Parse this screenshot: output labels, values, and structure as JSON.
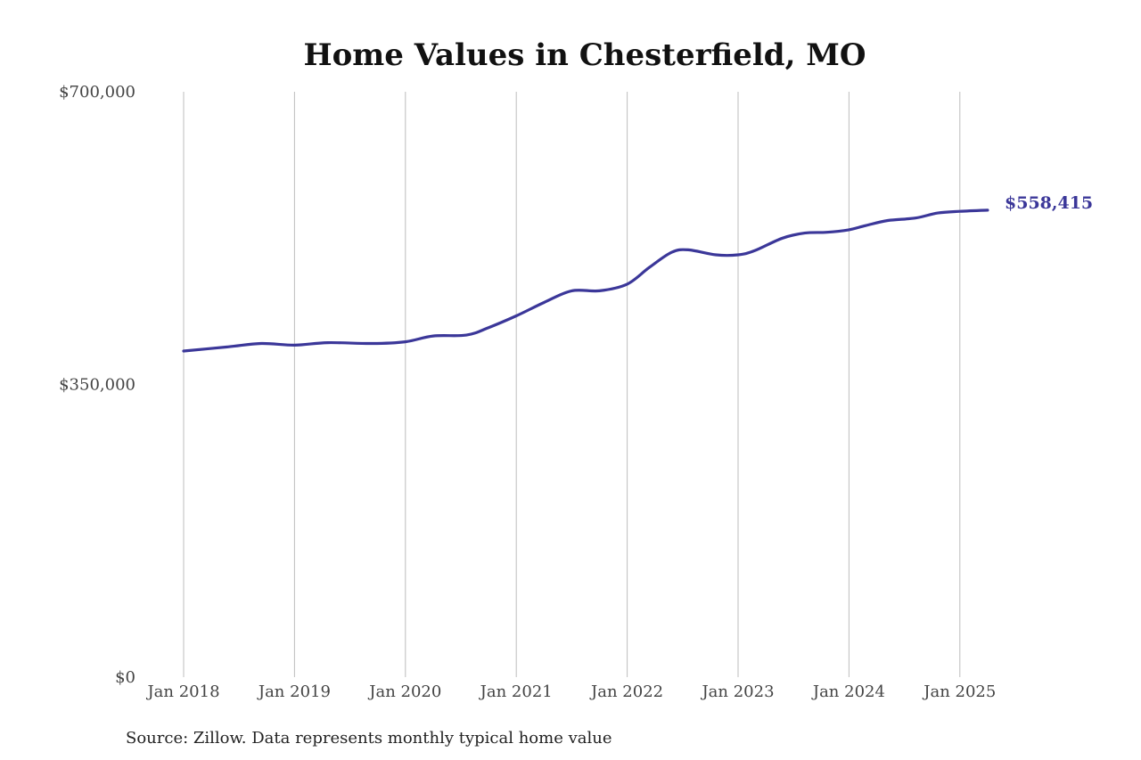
{
  "chart_data": {
    "type": "line",
    "title": "Home Values in Chesterfield, MO",
    "xlabel": "",
    "ylabel": "",
    "ylim": [
      0,
      700000
    ],
    "yticks": [
      {
        "value": 0,
        "label": "$0"
      },
      {
        "value": 350000,
        "label": "$350,000"
      },
      {
        "value": 700000,
        "label": "$700,000"
      }
    ],
    "xticks": [
      {
        "value": 2018.0,
        "label": "Jan 2018"
      },
      {
        "value": 2019.0,
        "label": "Jan 2019"
      },
      {
        "value": 2020.0,
        "label": "Jan 2020"
      },
      {
        "value": 2021.0,
        "label": "Jan 2021"
      },
      {
        "value": 2022.0,
        "label": "Jan 2022"
      },
      {
        "value": 2023.0,
        "label": "Jan 2023"
      },
      {
        "value": 2024.0,
        "label": "Jan 2024"
      },
      {
        "value": 2025.0,
        "label": "Jan 2025"
      }
    ],
    "grid": "vertical",
    "series": [
      {
        "color": "#3b3799",
        "x": [
          2018.0,
          2018.4,
          2018.7,
          2019.0,
          2019.3,
          2019.7,
          2020.0,
          2020.25,
          2020.55,
          2020.75,
          2021.0,
          2021.25,
          2021.5,
          2021.75,
          2022.0,
          2022.2,
          2022.4,
          2022.55,
          2022.8,
          2023.0,
          2023.15,
          2023.4,
          2023.6,
          2023.8,
          2024.0,
          2024.15,
          2024.35,
          2024.6,
          2024.8,
          2025.0,
          2025.25
        ],
        "y": [
          390000,
          395000,
          399000,
          397000,
          400000,
          399000,
          401000,
          408000,
          409000,
          418000,
          432000,
          448000,
          462000,
          462000,
          470000,
          490000,
          508000,
          511000,
          505000,
          505000,
          510000,
          525000,
          531000,
          532000,
          535000,
          540000,
          546000,
          549000,
          555000,
          557000,
          558415
        ]
      }
    ],
    "end_label": "$558,415",
    "source": "Source: Zillow. Data represents monthly typical home value"
  }
}
